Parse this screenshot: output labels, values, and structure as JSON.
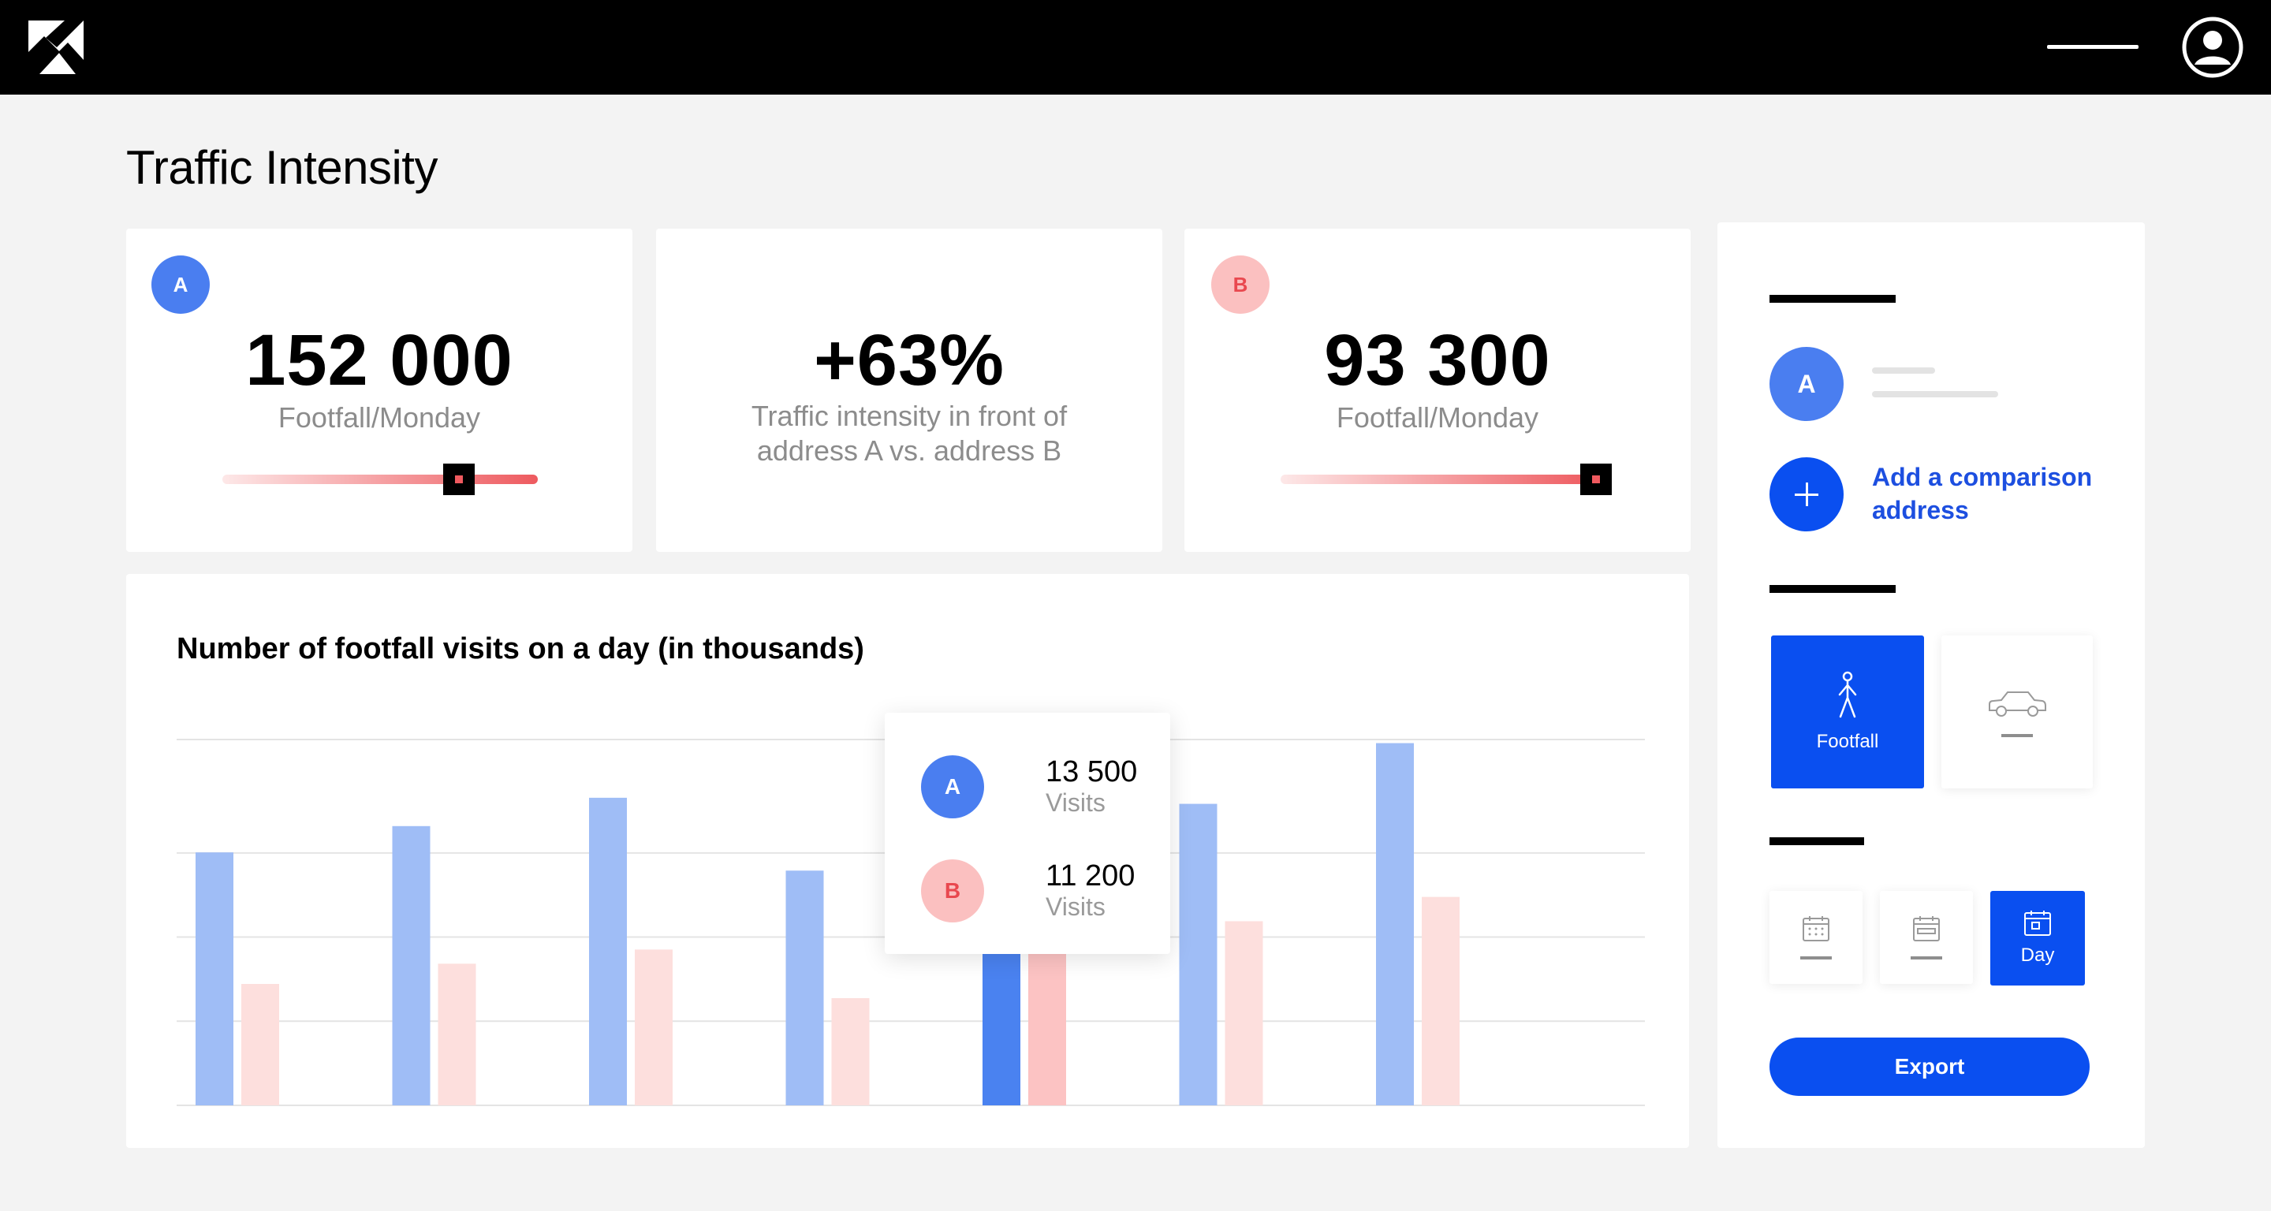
{
  "app": {
    "logo_icon": "k-logo-icon",
    "menu_icon": "menu-icon",
    "user_icon": "user-account-icon"
  },
  "page": {
    "title": "Traffic Intensity"
  },
  "kpis": {
    "a": {
      "badge": "A",
      "value": "152 000",
      "label": "Footfall/Monday",
      "slider_level": 0.75
    },
    "comparison": {
      "value": "+63%",
      "label": "Traffic intensity in front of address A vs. address B"
    },
    "b": {
      "badge": "B",
      "value": "93 300",
      "label": "Footfall/Monday",
      "slider_level": 1.0
    }
  },
  "chart_data": {
    "type": "bar",
    "title": "Number of footfall visits on a day (in thousands)",
    "categories": [
      "",
      "",
      "",
      "",
      "",
      "",
      ""
    ],
    "series": [
      {
        "name": "A",
        "values": [
          12.5,
          13.8,
          15.2,
          11.6,
          13.5,
          14.9,
          17.9
        ]
      },
      {
        "name": "B",
        "values": [
          6.0,
          7.0,
          7.7,
          5.3,
          11.2,
          9.1,
          10.3
        ]
      }
    ],
    "ylim": [
      0,
      18
    ],
    "grid": true,
    "highlight_index": 4,
    "colors": {
      "a": "#9fbdf6",
      "b": "#fddfdd",
      "a_active": "#4a82f0",
      "b_active": "#fcc3c3"
    }
  },
  "tooltip": {
    "a": {
      "badge": "A",
      "value": "13 500",
      "label": "Visits"
    },
    "b": {
      "badge": "B",
      "value": "11 200",
      "label": "Visits"
    }
  },
  "panel": {
    "address_a_badge": "A",
    "add_icon": "plus-icon",
    "add_comparison_label": "Add a comparison address",
    "modes": [
      {
        "icon": "pedestrian-icon",
        "label": "Footfall",
        "active": true
      },
      {
        "icon": "car-icon",
        "label": "",
        "active": false
      }
    ],
    "periods": [
      {
        "icon": "calendar-month-icon",
        "label": "",
        "active": false
      },
      {
        "icon": "calendar-week-icon",
        "label": "",
        "active": false
      },
      {
        "icon": "calendar-day-icon",
        "label": "Day",
        "active": true
      }
    ],
    "export_label": "Export"
  },
  "colors": {
    "accent": "#0a4ff0",
    "series_a": "#4a7ef0",
    "series_b": "#fbc0c0",
    "series_b_text": "#e9484f"
  }
}
